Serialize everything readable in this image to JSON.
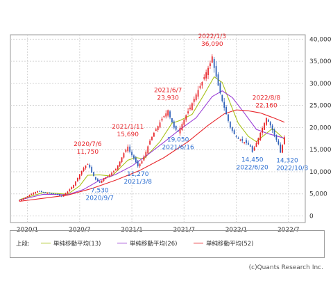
{
  "chart_data": {
    "type": "candlestick",
    "y_ticks": [
      "40,000",
      "35,000",
      "30,000",
      "25,000",
      "20,000",
      "15,000",
      "10,000",
      "5,000",
      "0"
    ],
    "ylim": [
      -1500,
      41000
    ],
    "x_ticks": [
      "2020/1",
      "2020/7",
      "2021/1",
      "2021/7",
      "2022/1",
      "2022/7"
    ],
    "grid": true,
    "colors": {
      "up": "#e8262b",
      "down": "#2d5fb8",
      "ma13": "#a9c21a",
      "ma26": "#9b3fd6",
      "ma52": "#e8262b"
    },
    "price_path": [
      [
        0,
        3500
      ],
      [
        3,
        4200
      ],
      [
        6,
        5000
      ],
      [
        9,
        5600
      ],
      [
        12,
        5300
      ],
      [
        15,
        5100
      ],
      [
        18,
        5000
      ],
      [
        21,
        4400
      ],
      [
        24,
        5500
      ],
      [
        27,
        7000
      ],
      [
        29,
        8600
      ],
      [
        31,
        10200
      ],
      [
        33,
        11400
      ],
      [
        34,
        11750
      ],
      [
        35,
        11000
      ],
      [
        36,
        9800
      ],
      [
        38,
        8200
      ],
      [
        40,
        7530
      ],
      [
        42,
        8500
      ],
      [
        44,
        9000
      ],
      [
        46,
        9800
      ],
      [
        48,
        10600
      ],
      [
        50,
        12300
      ],
      [
        52,
        14200
      ],
      [
        54,
        15690
      ],
      [
        55,
        14500
      ],
      [
        57,
        13000
      ],
      [
        59,
        11270
      ],
      [
        61,
        12400
      ],
      [
        63,
        14500
      ],
      [
        65,
        17000
      ],
      [
        67,
        18800
      ],
      [
        69,
        20300
      ],
      [
        71,
        22000
      ],
      [
        73,
        23200
      ],
      [
        74,
        23930
      ],
      [
        75,
        22300
      ],
      [
        77,
        20000
      ],
      [
        79,
        19050
      ],
      [
        81,
        20800
      ],
      [
        83,
        22800
      ],
      [
        85,
        24500
      ],
      [
        87,
        26500
      ],
      [
        89,
        28500
      ],
      [
        91,
        30300
      ],
      [
        93,
        32500
      ],
      [
        95,
        34500
      ],
      [
        96,
        36090
      ],
      [
        97,
        33500
      ],
      [
        99,
        29500
      ],
      [
        101,
        26000
      ],
      [
        103,
        23000
      ],
      [
        105,
        20000
      ],
      [
        107,
        18500
      ],
      [
        109,
        17500
      ],
      [
        111,
        17000
      ],
      [
        113,
        16500
      ],
      [
        115,
        15700
      ],
      [
        116,
        14450
      ],
      [
        118,
        16500
      ],
      [
        120,
        18800
      ],
      [
        122,
        21000
      ],
      [
        123,
        22160
      ],
      [
        125,
        20500
      ],
      [
        127,
        18300
      ],
      [
        129,
        16200
      ],
      [
        130,
        14320
      ],
      [
        131,
        16000
      ],
      [
        132,
        17800
      ]
    ],
    "n_weeks": 133,
    "series": [
      {
        "name": "単純移動平均(13)",
        "path": [
          [
            0,
            3700
          ],
          [
            12,
            5300
          ],
          [
            24,
            4900
          ],
          [
            30,
            6800
          ],
          [
            34,
            9200
          ],
          [
            40,
            9300
          ],
          [
            46,
            9000
          ],
          [
            54,
            12600
          ],
          [
            58,
            13200
          ],
          [
            62,
            12900
          ],
          [
            70,
            16800
          ],
          [
            76,
            21000
          ],
          [
            80,
            21600
          ],
          [
            86,
            23000
          ],
          [
            92,
            27500
          ],
          [
            97,
            31500
          ],
          [
            101,
            30200
          ],
          [
            105,
            25500
          ],
          [
            109,
            21000
          ],
          [
            114,
            18000
          ],
          [
            118,
            16800
          ],
          [
            122,
            18300
          ],
          [
            126,
            19800
          ],
          [
            130,
            18200
          ],
          [
            132,
            17300
          ]
        ]
      },
      {
        "name": "単純移動平均(26)",
        "path": [
          [
            0,
            3600
          ],
          [
            12,
            4900
          ],
          [
            24,
            4800
          ],
          [
            32,
            6000
          ],
          [
            40,
            8100
          ],
          [
            48,
            9400
          ],
          [
            56,
            11300
          ],
          [
            64,
            13900
          ],
          [
            72,
            16700
          ],
          [
            80,
            19600
          ],
          [
            88,
            22200
          ],
          [
            96,
            27000
          ],
          [
            101,
            28300
          ],
          [
            106,
            26800
          ],
          [
            112,
            23300
          ],
          [
            118,
            19600
          ],
          [
            124,
            18600
          ],
          [
            132,
            17600
          ]
        ]
      },
      {
        "name": "単純移動平均(52)",
        "path": [
          [
            0,
            3300
          ],
          [
            12,
            4000
          ],
          [
            24,
            4700
          ],
          [
            36,
            6200
          ],
          [
            48,
            8100
          ],
          [
            60,
            10300
          ],
          [
            72,
            13200
          ],
          [
            84,
            16800
          ],
          [
            94,
            20500
          ],
          [
            102,
            23100
          ],
          [
            108,
            24000
          ],
          [
            114,
            23800
          ],
          [
            120,
            23300
          ],
          [
            126,
            22300
          ],
          [
            132,
            21200
          ]
        ]
      }
    ],
    "annotations": [
      {
        "w": 96,
        "price": 36090,
        "text": [
          "2022/1/3",
          "36,090"
        ],
        "color": "red"
      },
      {
        "w": 74,
        "price": 23930,
        "text": [
          "2021/6/7",
          "23,930"
        ],
        "color": "red"
      },
      {
        "w": 54,
        "price": 15690,
        "text": [
          "2021/1/11",
          "15,690"
        ],
        "color": "red"
      },
      {
        "w": 34,
        "price": 11750,
        "text": [
          "2020/7/6",
          "11,750"
        ],
        "color": "red"
      },
      {
        "w": 123,
        "price": 22160,
        "text": [
          "2022/8/8",
          "22,160"
        ],
        "color": "red"
      },
      {
        "w": 40,
        "price": 7530,
        "text": [
          "7,530",
          "2020/9/7"
        ],
        "color": "blue"
      },
      {
        "w": 59,
        "price": 11270,
        "text": [
          "11,270",
          "2021/3/8"
        ],
        "color": "blue"
      },
      {
        "w": 79,
        "price": 19050,
        "text": [
          "19,050",
          "2021/6/16"
        ],
        "color": "blue"
      },
      {
        "w": 116,
        "price": 14450,
        "text": [
          "14,450",
          "2022/6/20"
        ],
        "color": "blue"
      },
      {
        "w": 130,
        "price": 14320,
        "text": [
          "14,320",
          "2022/10/3"
        ],
        "color": "blue"
      }
    ]
  },
  "legend": {
    "prefix": "上段:",
    "items": [
      {
        "name": "単純移動平均(13)",
        "color": "#a9c21a"
      },
      {
        "name": "単純移動平均(26)",
        "color": "#9b3fd6"
      },
      {
        "name": "単純移動平均(52)",
        "color": "#e8262b"
      }
    ]
  },
  "credit": "(c)Quants Research Inc."
}
